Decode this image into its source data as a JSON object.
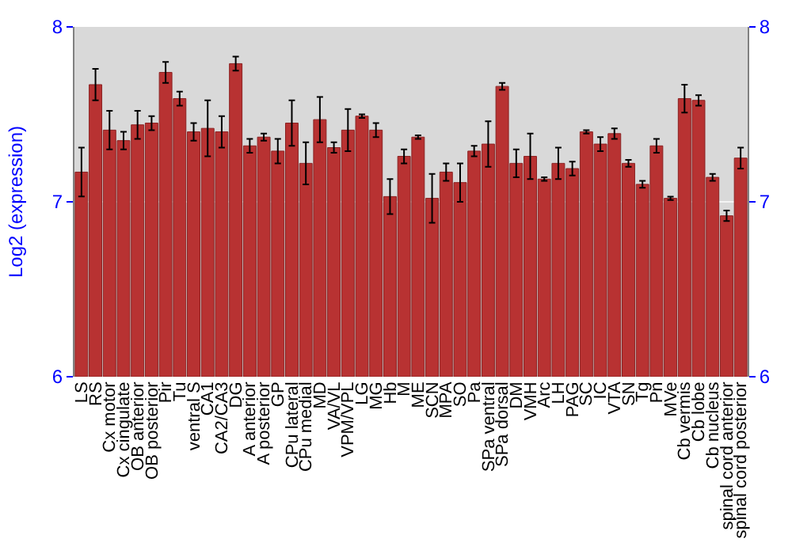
{
  "chart_data": {
    "type": "bar",
    "ylabel": "Log2 (expression)",
    "categories": [
      "LS",
      "RS",
      "Cx motor",
      "Cx cingulate",
      "OB anterior",
      "OB posterior",
      "Pir",
      "Tu",
      "ventral S",
      "CA1",
      "CA2/CA3",
      "DG",
      "A anterior",
      "A posterior",
      "GP",
      "CPu lateral",
      "CPu medial",
      "MD",
      "VA/VL",
      "VPM/VPL",
      "LG",
      "MG",
      "Hb",
      "M",
      "ME",
      "SCN",
      "MPA",
      "SO",
      "Pa",
      "SPa ventral",
      "SPa dorsal",
      "DM",
      "VMH",
      "Arc",
      "LH",
      "PAG",
      "SC",
      "IC",
      "VTA",
      "SN",
      "Tg",
      "Pn",
      "MVe",
      "Cb vermis",
      "Cb lobe",
      "Cb nucleus",
      "spinal cord anterior",
      "spinal cord posterior"
    ],
    "series": [
      {
        "color": "#b83232",
        "values": [
          7.17,
          7.67,
          7.41,
          7.35,
          7.44,
          7.45,
          7.74,
          7.59,
          7.4,
          7.42,
          7.4,
          7.79,
          7.32,
          7.37,
          7.29,
          7.45,
          7.22,
          7.47,
          7.31,
          7.41,
          7.49,
          7.41,
          7.03,
          7.26,
          7.37,
          7.02,
          7.17,
          7.11,
          7.29,
          7.33,
          7.66,
          7.22,
          7.26,
          7.13,
          7.22,
          7.19,
          7.4,
          7.33,
          7.39,
          7.22,
          7.1,
          7.32,
          7.02,
          7.59,
          7.58,
          7.14,
          6.92,
          7.25
        ],
        "errors": [
          0.14,
          0.09,
          0.11,
          0.05,
          0.08,
          0.04,
          0.06,
          0.04,
          0.05,
          0.16,
          0.09,
          0.04,
          0.04,
          0.02,
          0.07,
          0.13,
          0.12,
          0.13,
          0.03,
          0.12,
          0.01,
          0.04,
          0.1,
          0.04,
          0.01,
          0.14,
          0.05,
          0.11,
          0.03,
          0.13,
          0.02,
          0.08,
          0.13,
          0.01,
          0.09,
          0.04,
          0.01,
          0.04,
          0.03,
          0.02,
          0.02,
          0.04,
          0.01,
          0.08,
          0.03,
          0.02,
          0.03,
          0.06
        ]
      }
    ],
    "ylim": [
      6,
      8
    ],
    "yticks": [
      6,
      7,
      8
    ],
    "y2lim": [
      6,
      8
    ],
    "y2ticks": [
      6,
      7,
      8
    ],
    "grid": "y"
  }
}
